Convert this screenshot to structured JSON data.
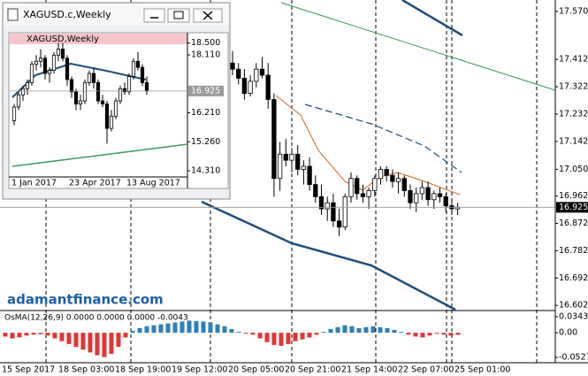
{
  "window_title": "XAGUSD.c,Weekly",
  "watermark": "adamantfinance.com",
  "chart_data": [
    {
      "type": "candlestick",
      "title": "XAGUSD.c,Weekly",
      "candles": [
        [
          17.4,
          17.44,
          17.36,
          17.38
        ],
        [
          17.38,
          17.4,
          17.33,
          17.35
        ],
        [
          17.35,
          17.38,
          17.28,
          17.3
        ],
        [
          17.3,
          17.36,
          17.29,
          17.34
        ],
        [
          17.34,
          17.4,
          17.32,
          17.38
        ],
        [
          17.38,
          17.42,
          17.35,
          17.36
        ],
        [
          17.36,
          17.4,
          17.25,
          17.28
        ],
        [
          17.28,
          17.3,
          16.96,
          17.02
        ],
        [
          17.02,
          17.14,
          16.98,
          17.1
        ],
        [
          17.1,
          17.15,
          17.06,
          17.08
        ],
        [
          17.08,
          17.12,
          17.04,
          17.1
        ],
        [
          17.1,
          17.13,
          17.03,
          17.05
        ],
        [
          17.05,
          17.08,
          17.0,
          17.06
        ],
        [
          17.06,
          17.09,
          16.98,
          17.0
        ],
        [
          17.0,
          17.03,
          16.94,
          16.96
        ],
        [
          16.96,
          17.0,
          16.9,
          16.92
        ],
        [
          16.92,
          16.96,
          16.88,
          16.94
        ],
        [
          16.94,
          16.97,
          16.86,
          16.88
        ],
        [
          16.88,
          16.92,
          16.83,
          16.86
        ],
        [
          16.86,
          16.97,
          16.85,
          16.96
        ],
        [
          16.96,
          17.04,
          16.94,
          17.02
        ],
        [
          17.02,
          17.03,
          16.95,
          16.97
        ],
        [
          16.97,
          17.0,
          16.94,
          16.96
        ],
        [
          16.96,
          16.99,
          16.92,
          16.98
        ],
        [
          16.98,
          17.03,
          16.96,
          17.02
        ],
        [
          17.02,
          17.06,
          17.0,
          17.05
        ],
        [
          17.05,
          17.06,
          17.01,
          17.03
        ],
        [
          17.03,
          17.05,
          16.99,
          17.01
        ],
        [
          17.01,
          17.04,
          16.97,
          17.02
        ],
        [
          17.02,
          17.03,
          16.96,
          16.98
        ],
        [
          16.98,
          17.0,
          16.92,
          16.94
        ],
        [
          16.94,
          16.99,
          16.91,
          16.97
        ],
        [
          16.97,
          17.01,
          16.95,
          16.99
        ],
        [
          16.99,
          17.01,
          16.93,
          16.95
        ],
        [
          16.95,
          16.98,
          16.92,
          16.97
        ],
        [
          16.97,
          16.99,
          16.94,
          16.96
        ],
        [
          16.96,
          16.97,
          16.91,
          16.93
        ],
        [
          16.93,
          16.95,
          16.9,
          16.92
        ],
        [
          16.92,
          16.94,
          16.9,
          16.925
        ]
      ],
      "up_color": "#ffffff",
      "down_color": "#000000",
      "line_color": "#000000",
      "current": 16.925,
      "ylim": [
        16.588,
        17.599
      ],
      "yticks": [
        {
          "value": 17.57,
          "label": "17.570"
        },
        17.412,
        17.322,
        17.232,
        17.142,
        {
          "value": 17.05,
          "label": "17.050"
        },
        16.962,
        16.872,
        16.782,
        16.692,
        16.602
      ],
      "time_labels": [
        "15 Sep 2017",
        "18 Sep 03:00",
        "18 Sep 19:00",
        "19 Sep 12:00",
        "20 Sep 05:00",
        "20 Sep 21:00",
        "21 Sep 14:00",
        "22 Sep 07:00",
        "25 Sep 01:00"
      ]
    },
    {
      "type": "candlestick",
      "title": "XAGUSD,Weekly",
      "candles": [
        [
          15.95,
          16.5,
          15.8,
          16.4
        ],
        [
          16.4,
          16.9,
          16.3,
          16.8
        ],
        [
          16.8,
          17.1,
          16.6,
          17.0
        ],
        [
          17.0,
          17.3,
          16.8,
          17.2
        ],
        [
          17.2,
          17.9,
          17.1,
          17.8
        ],
        [
          17.8,
          18.1,
          17.6,
          17.9
        ],
        [
          17.9,
          18.3,
          17.7,
          18.0
        ],
        [
          18.0,
          18.1,
          17.3,
          17.5
        ],
        [
          17.5,
          17.7,
          17.2,
          17.6
        ],
        [
          17.6,
          18.2,
          17.5,
          18.1
        ],
        [
          18.1,
          18.5,
          17.9,
          18.3
        ],
        [
          18.3,
          18.5,
          17.9,
          18.0
        ],
        [
          18.0,
          18.1,
          17.1,
          17.3
        ],
        [
          17.3,
          17.4,
          16.7,
          16.9
        ],
        [
          16.9,
          17.0,
          16.3,
          16.5
        ],
        [
          16.5,
          16.8,
          16.3,
          16.6
        ],
        [
          16.6,
          17.3,
          16.5,
          17.2
        ],
        [
          17.2,
          17.6,
          17.1,
          17.5
        ],
        [
          17.5,
          17.7,
          17.0,
          17.2
        ],
        [
          17.2,
          17.3,
          16.5,
          16.6
        ],
        [
          16.6,
          16.8,
          16.4,
          16.5
        ],
        [
          16.5,
          16.6,
          15.2,
          15.7
        ],
        [
          15.7,
          16.3,
          15.6,
          16.1
        ],
        [
          16.1,
          16.7,
          16.0,
          16.6
        ],
        [
          16.6,
          17.1,
          16.5,
          17.0
        ],
        [
          17.0,
          17.2,
          16.8,
          16.9
        ],
        [
          16.9,
          17.5,
          16.8,
          17.4
        ],
        [
          17.4,
          18.0,
          17.3,
          17.9
        ],
        [
          17.9,
          18.2,
          17.6,
          17.7
        ],
        [
          17.7,
          17.8,
          17.1,
          17.2
        ],
        [
          17.2,
          17.4,
          16.8,
          16.925
        ]
      ],
      "up_color": "#ffffff",
      "down_color": "#000000",
      "line_color": "#000000",
      "current": 16.925,
      "ylim": [
        13.73,
        18.835
      ],
      "yticks": [
        {
          "value": 18.5,
          "label": "18.500"
        },
        {
          "value": 18.11,
          "label": "18.110"
        },
        {
          "value": 16.21,
          "label": "16.210"
        },
        {
          "value": 15.26,
          "label": "15.260"
        },
        {
          "value": 14.31,
          "label": "14.310"
        }
      ],
      "time_labels": [
        "1 Jan 2017",
        "23 Apr 2017",
        "13 Aug 2017"
      ]
    },
    {
      "type": "histogram",
      "title": "OsMA(12,26,9) 0.0000 0.0000 0.0000 -0.0043",
      "values": [
        -0.008,
        -0.012,
        -0.01,
        -0.006,
        -0.004,
        -0.003,
        -0.006,
        -0.012,
        -0.018,
        -0.024,
        -0.03,
        -0.036,
        -0.042,
        -0.048,
        -0.052,
        -0.045,
        -0.03,
        -0.01,
        0.004,
        0.01,
        0.014,
        0.016,
        0.018,
        0.02,
        0.022,
        0.024,
        0.026,
        0.025,
        0.024,
        0.022,
        0.018,
        0.014,
        0.008,
        0.002,
        -0.002,
        -0.004,
        -0.012,
        -0.02,
        -0.026,
        -0.028,
        -0.024,
        -0.018,
        -0.014,
        -0.01,
        -0.004,
        0.002,
        0.008,
        0.012,
        0.016,
        0.014,
        0.01,
        0.012,
        0.014,
        0.012,
        0.01,
        0.006,
        0.002,
        -0.004,
        -0.008,
        -0.01,
        -0.006,
        -0.002,
        -0.004,
        -0.006,
        -0.0043
      ],
      "pos_color": "#2f7fb8",
      "neg_color": "#e03535",
      "ylim": [
        -0.064,
        0.0456
      ],
      "yticks": [
        0.0343,
        {
          "value": 0,
          "label": "0.00"
        },
        -0.0527
      ]
    }
  ]
}
